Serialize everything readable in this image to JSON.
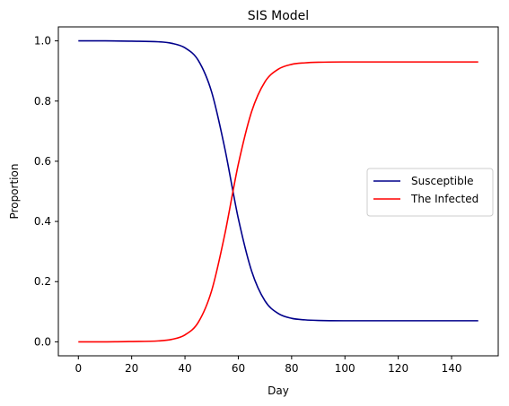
{
  "chart_data": {
    "type": "line",
    "title": "SIS Model",
    "xlabel": "Day",
    "ylabel": "Proportion",
    "xlim": [
      -7.5,
      157.5
    ],
    "ylim": [
      -0.0465,
      1.0465
    ],
    "xticks": [
      0,
      20,
      40,
      60,
      80,
      100,
      120,
      140
    ],
    "xtick_labels": [
      "0",
      "20",
      "40",
      "60",
      "80",
      "100",
      "120",
      "140"
    ],
    "yticks": [
      0.0,
      0.2,
      0.4,
      0.6,
      0.8,
      1.0
    ],
    "ytick_labels": [
      "0.0",
      "0.2",
      "0.4",
      "0.6",
      "0.8",
      "1.0"
    ],
    "grid": false,
    "legend_position": "center-right",
    "x": [
      0,
      10,
      20,
      30,
      35,
      40,
      45,
      50,
      55,
      58,
      60,
      65,
      70,
      75,
      80,
      85,
      90,
      100,
      110,
      120,
      130,
      140,
      150
    ],
    "series": [
      {
        "name": "Susceptible",
        "color": "#00008b",
        "values": [
          1.0,
          1.0,
          0.999,
          0.997,
          0.992,
          0.977,
          0.935,
          0.83,
          0.64,
          0.5,
          0.41,
          0.235,
          0.136,
          0.094,
          0.078,
          0.073,
          0.071,
          0.07,
          0.07,
          0.07,
          0.07,
          0.07,
          0.07
        ]
      },
      {
        "name": "The Infected",
        "color": "#ff0000",
        "values": [
          0.0,
          0.0,
          0.001,
          0.003,
          0.008,
          0.023,
          0.065,
          0.17,
          0.36,
          0.5,
          0.59,
          0.765,
          0.864,
          0.906,
          0.922,
          0.927,
          0.929,
          0.93,
          0.93,
          0.93,
          0.93,
          0.93,
          0.93
        ]
      }
    ]
  }
}
